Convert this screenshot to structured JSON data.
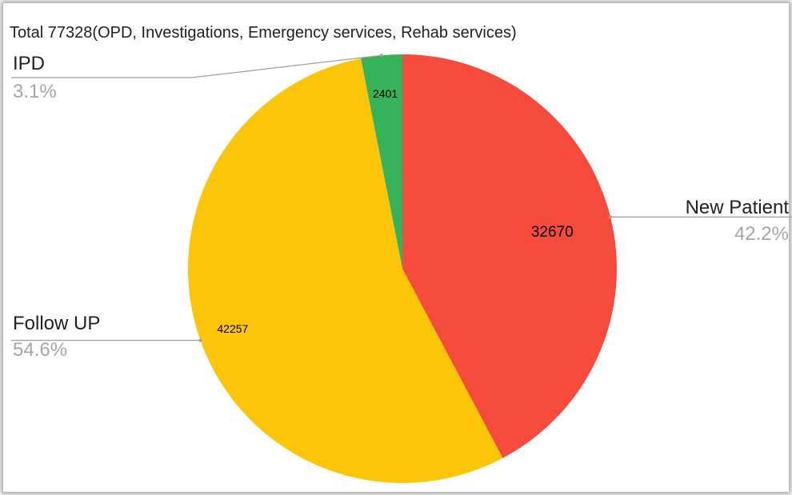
{
  "chart_data": {
    "type": "pie",
    "title": "Total 77328(OPD, Investigations, Emergency services, Rehab services)",
    "slices": [
      {
        "name": "New Patient",
        "value": 32670,
        "percent_label": "42.2%",
        "color": "#f64b3c"
      },
      {
        "name": "Follow UP",
        "value": 42257,
        "percent_label": "54.6%",
        "color": "#fcc508"
      },
      {
        "name": "IPD",
        "value": 2401,
        "percent_label": "3.1%",
        "color": "#36b25a"
      }
    ],
    "start_angle_deg": 0,
    "direction": "clockwise",
    "legend": "callout-lines"
  }
}
